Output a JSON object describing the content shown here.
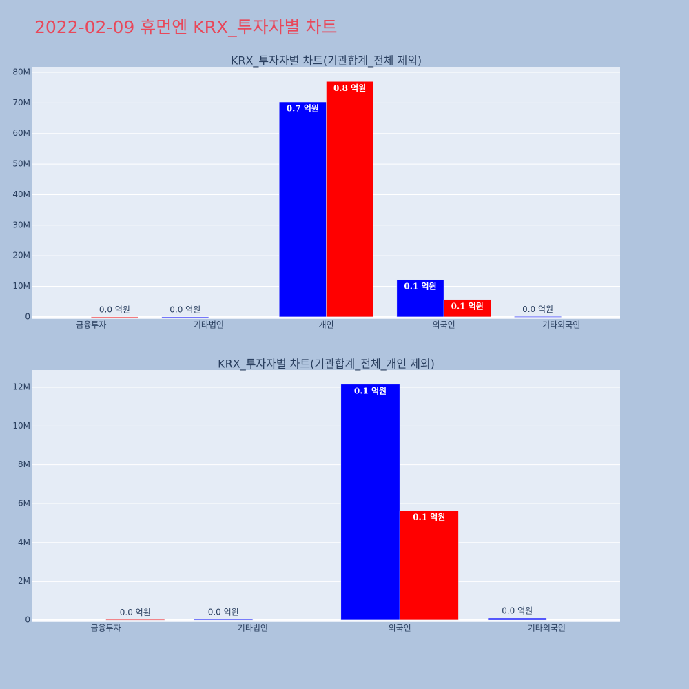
{
  "title": "2022-02-09 휴먼엔 KRX_투자자별 차트",
  "chart_data": [
    {
      "type": "bar",
      "title": "KRX_투자자별 차트(기관합계_전체 제외)",
      "categories": [
        "금융투자",
        "기타법인",
        "개인",
        "외국인",
        "기타외국인"
      ],
      "series": [
        {
          "color": "#0000ff",
          "values": [
            null,
            30000,
            70300000,
            12150000,
            100000
          ],
          "value_labels": [
            null,
            "0.0 억원",
            "0.7 억원",
            "0.1 억원",
            "0.0 억원"
          ]
        },
        {
          "color": "#ff0000",
          "values": [
            20000,
            null,
            77000000,
            5640000,
            null
          ],
          "value_labels": [
            "0.0 억원",
            null,
            "0.8 억원",
            "0.1 억원",
            null
          ]
        }
      ],
      "ylim": [
        -700000,
        81800000
      ],
      "yticks": [
        0,
        {
          "value": 10000000,
          "label": "10M"
        },
        {
          "value": 20000000,
          "label": "20M"
        },
        {
          "value": 30000000,
          "label": "30M"
        },
        {
          "value": 40000000,
          "label": "40M"
        },
        {
          "value": 50000000,
          "label": "50M"
        },
        {
          "value": 60000000,
          "label": "60M"
        },
        {
          "value": 70000000,
          "label": "70M"
        },
        {
          "value": 80000000,
          "label": "80M"
        }
      ],
      "grid": true
    },
    {
      "type": "bar",
      "title": "KRX_투자자별 차트(기관합계_전체_개인 제외)",
      "categories": [
        "금융투자",
        "기타법인",
        "외국인",
        "기타외국인"
      ],
      "series": [
        {
          "color": "#0000ff",
          "values": [
            null,
            30000,
            12150000,
            100000
          ],
          "value_labels": [
            null,
            "0.0 억원",
            "0.1 억원",
            "0.0 억원"
          ]
        },
        {
          "color": "#ff0000",
          "values": [
            20000,
            null,
            5640000,
            null
          ],
          "value_labels": [
            "0.0 억원",
            null,
            "0.1 억원",
            null
          ]
        }
      ],
      "ylim": [
        -110000,
        12890000
      ],
      "yticks": [
        0,
        {
          "value": 2000000,
          "label": "2M"
        },
        {
          "value": 4000000,
          "label": "4M"
        },
        {
          "value": 6000000,
          "label": "6M"
        },
        {
          "value": 8000000,
          "label": "8M"
        },
        {
          "value": 10000000,
          "label": "10M"
        },
        {
          "value": 12000000,
          "label": "12M"
        }
      ],
      "grid": true
    }
  ]
}
